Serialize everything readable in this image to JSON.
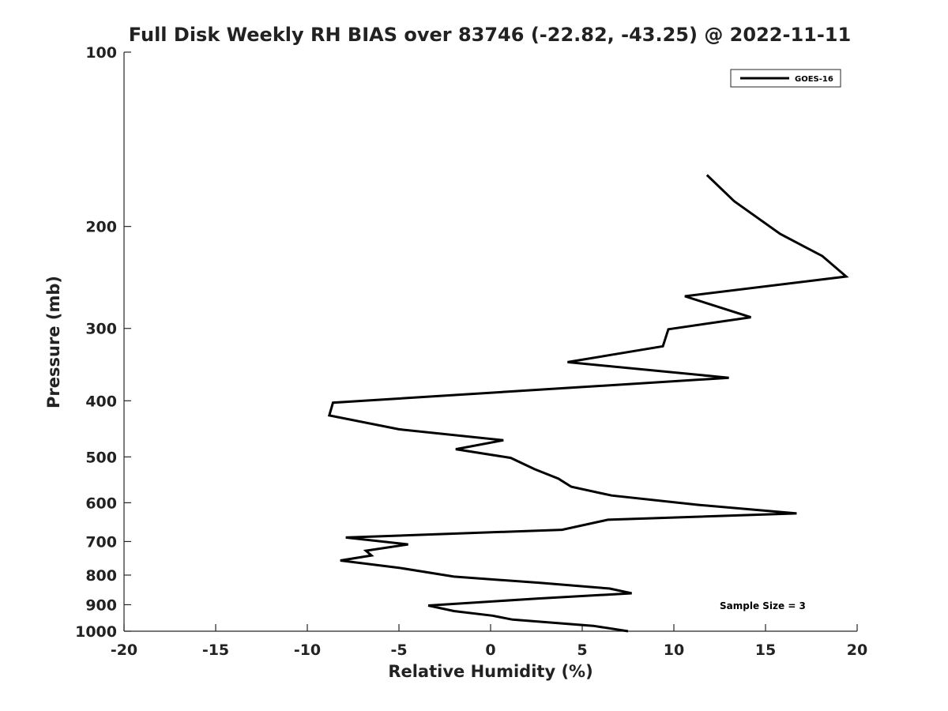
{
  "chart_data": {
    "type": "line",
    "title": "Full Disk Weekly RH BIAS over 83746 (-22.82, -43.25) @ 2022-11-11",
    "xlabel": "Relative Humidity (%)",
    "ylabel": "Pressure (mb)",
    "xlim": [
      -20,
      20
    ],
    "ylim": [
      1000,
      100
    ],
    "yscale": "log",
    "x_ticks": [
      "-20",
      "-15",
      "-10",
      "-5",
      "0",
      "5",
      "10",
      "15",
      "20"
    ],
    "y_ticks": [
      "100",
      "200",
      "300",
      "400",
      "500",
      "600",
      "700",
      "800",
      "900",
      "1000"
    ],
    "grid": false,
    "legend": {
      "position": "top-right",
      "entries": [
        "GOES-16"
      ]
    },
    "annotation": "Sample Size = 3",
    "series": [
      {
        "name": "GOES-16",
        "color": "#000000",
        "points": [
          {
            "x": 11.8,
            "y": 163
          },
          {
            "x": 13.3,
            "y": 181
          },
          {
            "x": 15.8,
            "y": 206
          },
          {
            "x": 18.1,
            "y": 225
          },
          {
            "x": 19.4,
            "y": 244
          },
          {
            "x": 10.6,
            "y": 264
          },
          {
            "x": 14.2,
            "y": 287
          },
          {
            "x": 9.7,
            "y": 301
          },
          {
            "x": 9.4,
            "y": 322
          },
          {
            "x": 4.2,
            "y": 343
          },
          {
            "x": 13.0,
            "y": 365
          },
          {
            "x": 3.7,
            "y": 381
          },
          {
            "x": -8.6,
            "y": 403
          },
          {
            "x": -8.8,
            "y": 424
          },
          {
            "x": -5.0,
            "y": 448
          },
          {
            "x": 0.7,
            "y": 468
          },
          {
            "x": -1.9,
            "y": 485
          },
          {
            "x": 1.1,
            "y": 502
          },
          {
            "x": 2.4,
            "y": 525
          },
          {
            "x": 3.7,
            "y": 545
          },
          {
            "x": 4.4,
            "y": 563
          },
          {
            "x": 6.6,
            "y": 583
          },
          {
            "x": 11.3,
            "y": 605
          },
          {
            "x": 16.7,
            "y": 626
          },
          {
            "x": 6.4,
            "y": 642
          },
          {
            "x": 3.9,
            "y": 668
          },
          {
            "x": -7.9,
            "y": 689
          },
          {
            "x": -4.5,
            "y": 708
          },
          {
            "x": -6.8,
            "y": 726
          },
          {
            "x": -6.5,
            "y": 740
          },
          {
            "x": -8.2,
            "y": 755
          },
          {
            "x": -5.0,
            "y": 777
          },
          {
            "x": -2.0,
            "y": 805
          },
          {
            "x": 2.7,
            "y": 825
          },
          {
            "x": 6.5,
            "y": 844
          },
          {
            "x": 7.7,
            "y": 860
          },
          {
            "x": 2.6,
            "y": 878
          },
          {
            "x": -3.4,
            "y": 903
          },
          {
            "x": -2.0,
            "y": 923
          },
          {
            "x": 0.1,
            "y": 940
          },
          {
            "x": 1.2,
            "y": 955
          },
          {
            "x": 5.6,
            "y": 979
          },
          {
            "x": 7.5,
            "y": 1000
          }
        ]
      }
    ]
  }
}
